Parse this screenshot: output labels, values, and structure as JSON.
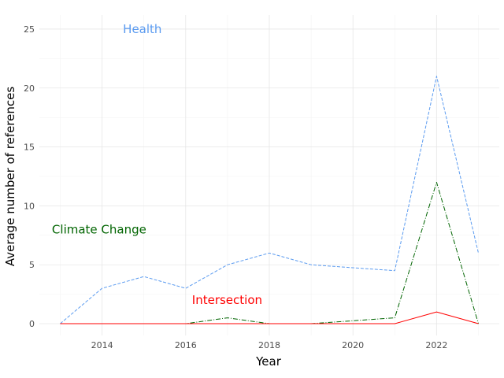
{
  "chart_data": {
    "type": "line",
    "xlabel": "Year",
    "ylabel": "Average number of references",
    "x": [
      2013,
      2014,
      2015,
      2016,
      2017,
      2018,
      2019,
      2020,
      2021,
      2022,
      2023
    ],
    "xlim": [
      2012.5,
      2023.5
    ],
    "ylim": [
      -1,
      26.2
    ],
    "x_ticks": [
      2014,
      2016,
      2018,
      2020,
      2022
    ],
    "x_tick_labels": [
      "2014",
      "2016",
      "2018",
      "2020",
      "2022"
    ],
    "y_ticks": [
      0,
      5,
      10,
      15,
      20,
      25
    ],
    "y_tick_labels": [
      "0",
      "5",
      "10",
      "15",
      "20",
      "25"
    ],
    "grid": true,
    "legend": "none",
    "series": [
      {
        "name": "Health",
        "color": "#5b9bf0",
        "dash": "dashed",
        "values": [
          0,
          3,
          4,
          3,
          5,
          6,
          5,
          4.75,
          4.5,
          21,
          6
        ]
      },
      {
        "name": "Climate Change",
        "color": "#006400",
        "dash": "dashdot",
        "values": [
          0,
          0,
          0,
          0,
          0.5,
          0,
          0,
          0.25,
          0.5,
          12,
          0
        ]
      },
      {
        "name": "Intersection",
        "color": "#ff0000",
        "dash": "solid",
        "values": [
          0,
          0,
          0,
          0,
          0,
          0,
          0,
          0,
          0,
          1,
          0
        ]
      }
    ],
    "annotations": [
      {
        "text": "Health",
        "x": 2014.5,
        "y": 25,
        "color": "#5b9bf0"
      },
      {
        "text": "Climate Change",
        "x": 2012.8,
        "y": 8,
        "color": "#006400"
      },
      {
        "text": "Intersection",
        "x": 2016.15,
        "y": 2,
        "color": "#ff0000"
      }
    ]
  }
}
